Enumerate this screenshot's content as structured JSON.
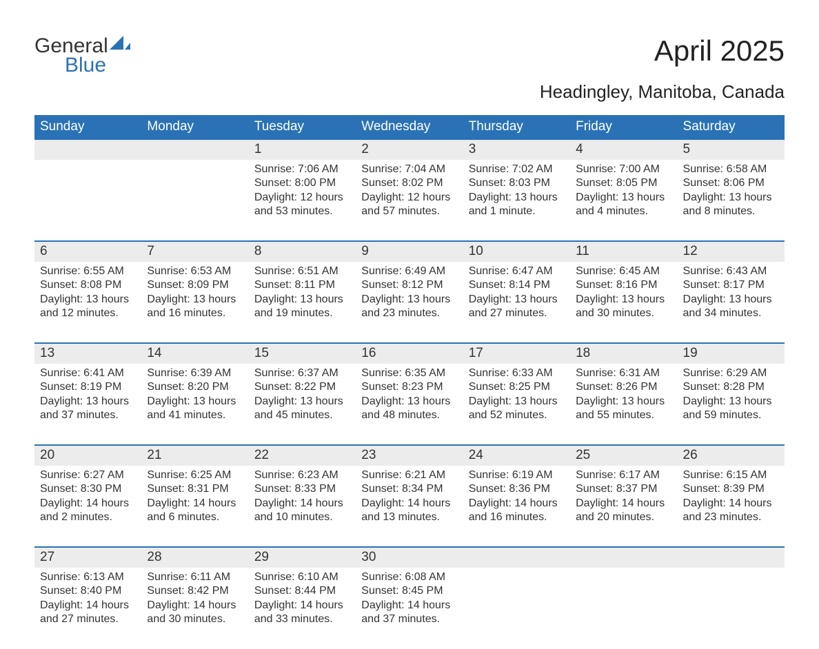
{
  "logo": {
    "word1": "General",
    "word2": "Blue",
    "sail_color": "#2a72b5",
    "word1_color": "#333333",
    "word2_color": "#2a72b5"
  },
  "title": "April 2025",
  "subtitle": "Headingley, Manitoba, Canada",
  "colors": {
    "header_bg": "#2a72b5",
    "header_text": "#ffffff",
    "daynum_bg": "#ececec",
    "row_border": "#2a72b5",
    "body_text": "#333333",
    "page_bg": "#ffffff"
  },
  "fonts": {
    "title_size": 42,
    "subtitle_size": 26,
    "weekday_size": 19,
    "daynum_size": 19,
    "cell_size": 16
  },
  "weekdays": [
    "Sunday",
    "Monday",
    "Tuesday",
    "Wednesday",
    "Thursday",
    "Friday",
    "Saturday"
  ],
  "weeks": [
    [
      {
        "n": "",
        "sunrise": "",
        "sunset": "",
        "daylight": ""
      },
      {
        "n": "",
        "sunrise": "",
        "sunset": "",
        "daylight": ""
      },
      {
        "n": "1",
        "sunrise": "Sunrise: 7:06 AM",
        "sunset": "Sunset: 8:00 PM",
        "daylight": "Daylight: 12 hours and 53 minutes."
      },
      {
        "n": "2",
        "sunrise": "Sunrise: 7:04 AM",
        "sunset": "Sunset: 8:02 PM",
        "daylight": "Daylight: 12 hours and 57 minutes."
      },
      {
        "n": "3",
        "sunrise": "Sunrise: 7:02 AM",
        "sunset": "Sunset: 8:03 PM",
        "daylight": "Daylight: 13 hours and 1 minute."
      },
      {
        "n": "4",
        "sunrise": "Sunrise: 7:00 AM",
        "sunset": "Sunset: 8:05 PM",
        "daylight": "Daylight: 13 hours and 4 minutes."
      },
      {
        "n": "5",
        "sunrise": "Sunrise: 6:58 AM",
        "sunset": "Sunset: 8:06 PM",
        "daylight": "Daylight: 13 hours and 8 minutes."
      }
    ],
    [
      {
        "n": "6",
        "sunrise": "Sunrise: 6:55 AM",
        "sunset": "Sunset: 8:08 PM",
        "daylight": "Daylight: 13 hours and 12 minutes."
      },
      {
        "n": "7",
        "sunrise": "Sunrise: 6:53 AM",
        "sunset": "Sunset: 8:09 PM",
        "daylight": "Daylight: 13 hours and 16 minutes."
      },
      {
        "n": "8",
        "sunrise": "Sunrise: 6:51 AM",
        "sunset": "Sunset: 8:11 PM",
        "daylight": "Daylight: 13 hours and 19 minutes."
      },
      {
        "n": "9",
        "sunrise": "Sunrise: 6:49 AM",
        "sunset": "Sunset: 8:12 PM",
        "daylight": "Daylight: 13 hours and 23 minutes."
      },
      {
        "n": "10",
        "sunrise": "Sunrise: 6:47 AM",
        "sunset": "Sunset: 8:14 PM",
        "daylight": "Daylight: 13 hours and 27 minutes."
      },
      {
        "n": "11",
        "sunrise": "Sunrise: 6:45 AM",
        "sunset": "Sunset: 8:16 PM",
        "daylight": "Daylight: 13 hours and 30 minutes."
      },
      {
        "n": "12",
        "sunrise": "Sunrise: 6:43 AM",
        "sunset": "Sunset: 8:17 PM",
        "daylight": "Daylight: 13 hours and 34 minutes."
      }
    ],
    [
      {
        "n": "13",
        "sunrise": "Sunrise: 6:41 AM",
        "sunset": "Sunset: 8:19 PM",
        "daylight": "Daylight: 13 hours and 37 minutes."
      },
      {
        "n": "14",
        "sunrise": "Sunrise: 6:39 AM",
        "sunset": "Sunset: 8:20 PM",
        "daylight": "Daylight: 13 hours and 41 minutes."
      },
      {
        "n": "15",
        "sunrise": "Sunrise: 6:37 AM",
        "sunset": "Sunset: 8:22 PM",
        "daylight": "Daylight: 13 hours and 45 minutes."
      },
      {
        "n": "16",
        "sunrise": "Sunrise: 6:35 AM",
        "sunset": "Sunset: 8:23 PM",
        "daylight": "Daylight: 13 hours and 48 minutes."
      },
      {
        "n": "17",
        "sunrise": "Sunrise: 6:33 AM",
        "sunset": "Sunset: 8:25 PM",
        "daylight": "Daylight: 13 hours and 52 minutes."
      },
      {
        "n": "18",
        "sunrise": "Sunrise: 6:31 AM",
        "sunset": "Sunset: 8:26 PM",
        "daylight": "Daylight: 13 hours and 55 minutes."
      },
      {
        "n": "19",
        "sunrise": "Sunrise: 6:29 AM",
        "sunset": "Sunset: 8:28 PM",
        "daylight": "Daylight: 13 hours and 59 minutes."
      }
    ],
    [
      {
        "n": "20",
        "sunrise": "Sunrise: 6:27 AM",
        "sunset": "Sunset: 8:30 PM",
        "daylight": "Daylight: 14 hours and 2 minutes."
      },
      {
        "n": "21",
        "sunrise": "Sunrise: 6:25 AM",
        "sunset": "Sunset: 8:31 PM",
        "daylight": "Daylight: 14 hours and 6 minutes."
      },
      {
        "n": "22",
        "sunrise": "Sunrise: 6:23 AM",
        "sunset": "Sunset: 8:33 PM",
        "daylight": "Daylight: 14 hours and 10 minutes."
      },
      {
        "n": "23",
        "sunrise": "Sunrise: 6:21 AM",
        "sunset": "Sunset: 8:34 PM",
        "daylight": "Daylight: 14 hours and 13 minutes."
      },
      {
        "n": "24",
        "sunrise": "Sunrise: 6:19 AM",
        "sunset": "Sunset: 8:36 PM",
        "daylight": "Daylight: 14 hours and 16 minutes."
      },
      {
        "n": "25",
        "sunrise": "Sunrise: 6:17 AM",
        "sunset": "Sunset: 8:37 PM",
        "daylight": "Daylight: 14 hours and 20 minutes."
      },
      {
        "n": "26",
        "sunrise": "Sunrise: 6:15 AM",
        "sunset": "Sunset: 8:39 PM",
        "daylight": "Daylight: 14 hours and 23 minutes."
      }
    ],
    [
      {
        "n": "27",
        "sunrise": "Sunrise: 6:13 AM",
        "sunset": "Sunset: 8:40 PM",
        "daylight": "Daylight: 14 hours and 27 minutes."
      },
      {
        "n": "28",
        "sunrise": "Sunrise: 6:11 AM",
        "sunset": "Sunset: 8:42 PM",
        "daylight": "Daylight: 14 hours and 30 minutes."
      },
      {
        "n": "29",
        "sunrise": "Sunrise: 6:10 AM",
        "sunset": "Sunset: 8:44 PM",
        "daylight": "Daylight: 14 hours and 33 minutes."
      },
      {
        "n": "30",
        "sunrise": "Sunrise: 6:08 AM",
        "sunset": "Sunset: 8:45 PM",
        "daylight": "Daylight: 14 hours and 37 minutes."
      },
      {
        "n": "",
        "sunrise": "",
        "sunset": "",
        "daylight": ""
      },
      {
        "n": "",
        "sunrise": "",
        "sunset": "",
        "daylight": ""
      },
      {
        "n": "",
        "sunrise": "",
        "sunset": "",
        "daylight": ""
      }
    ]
  ]
}
